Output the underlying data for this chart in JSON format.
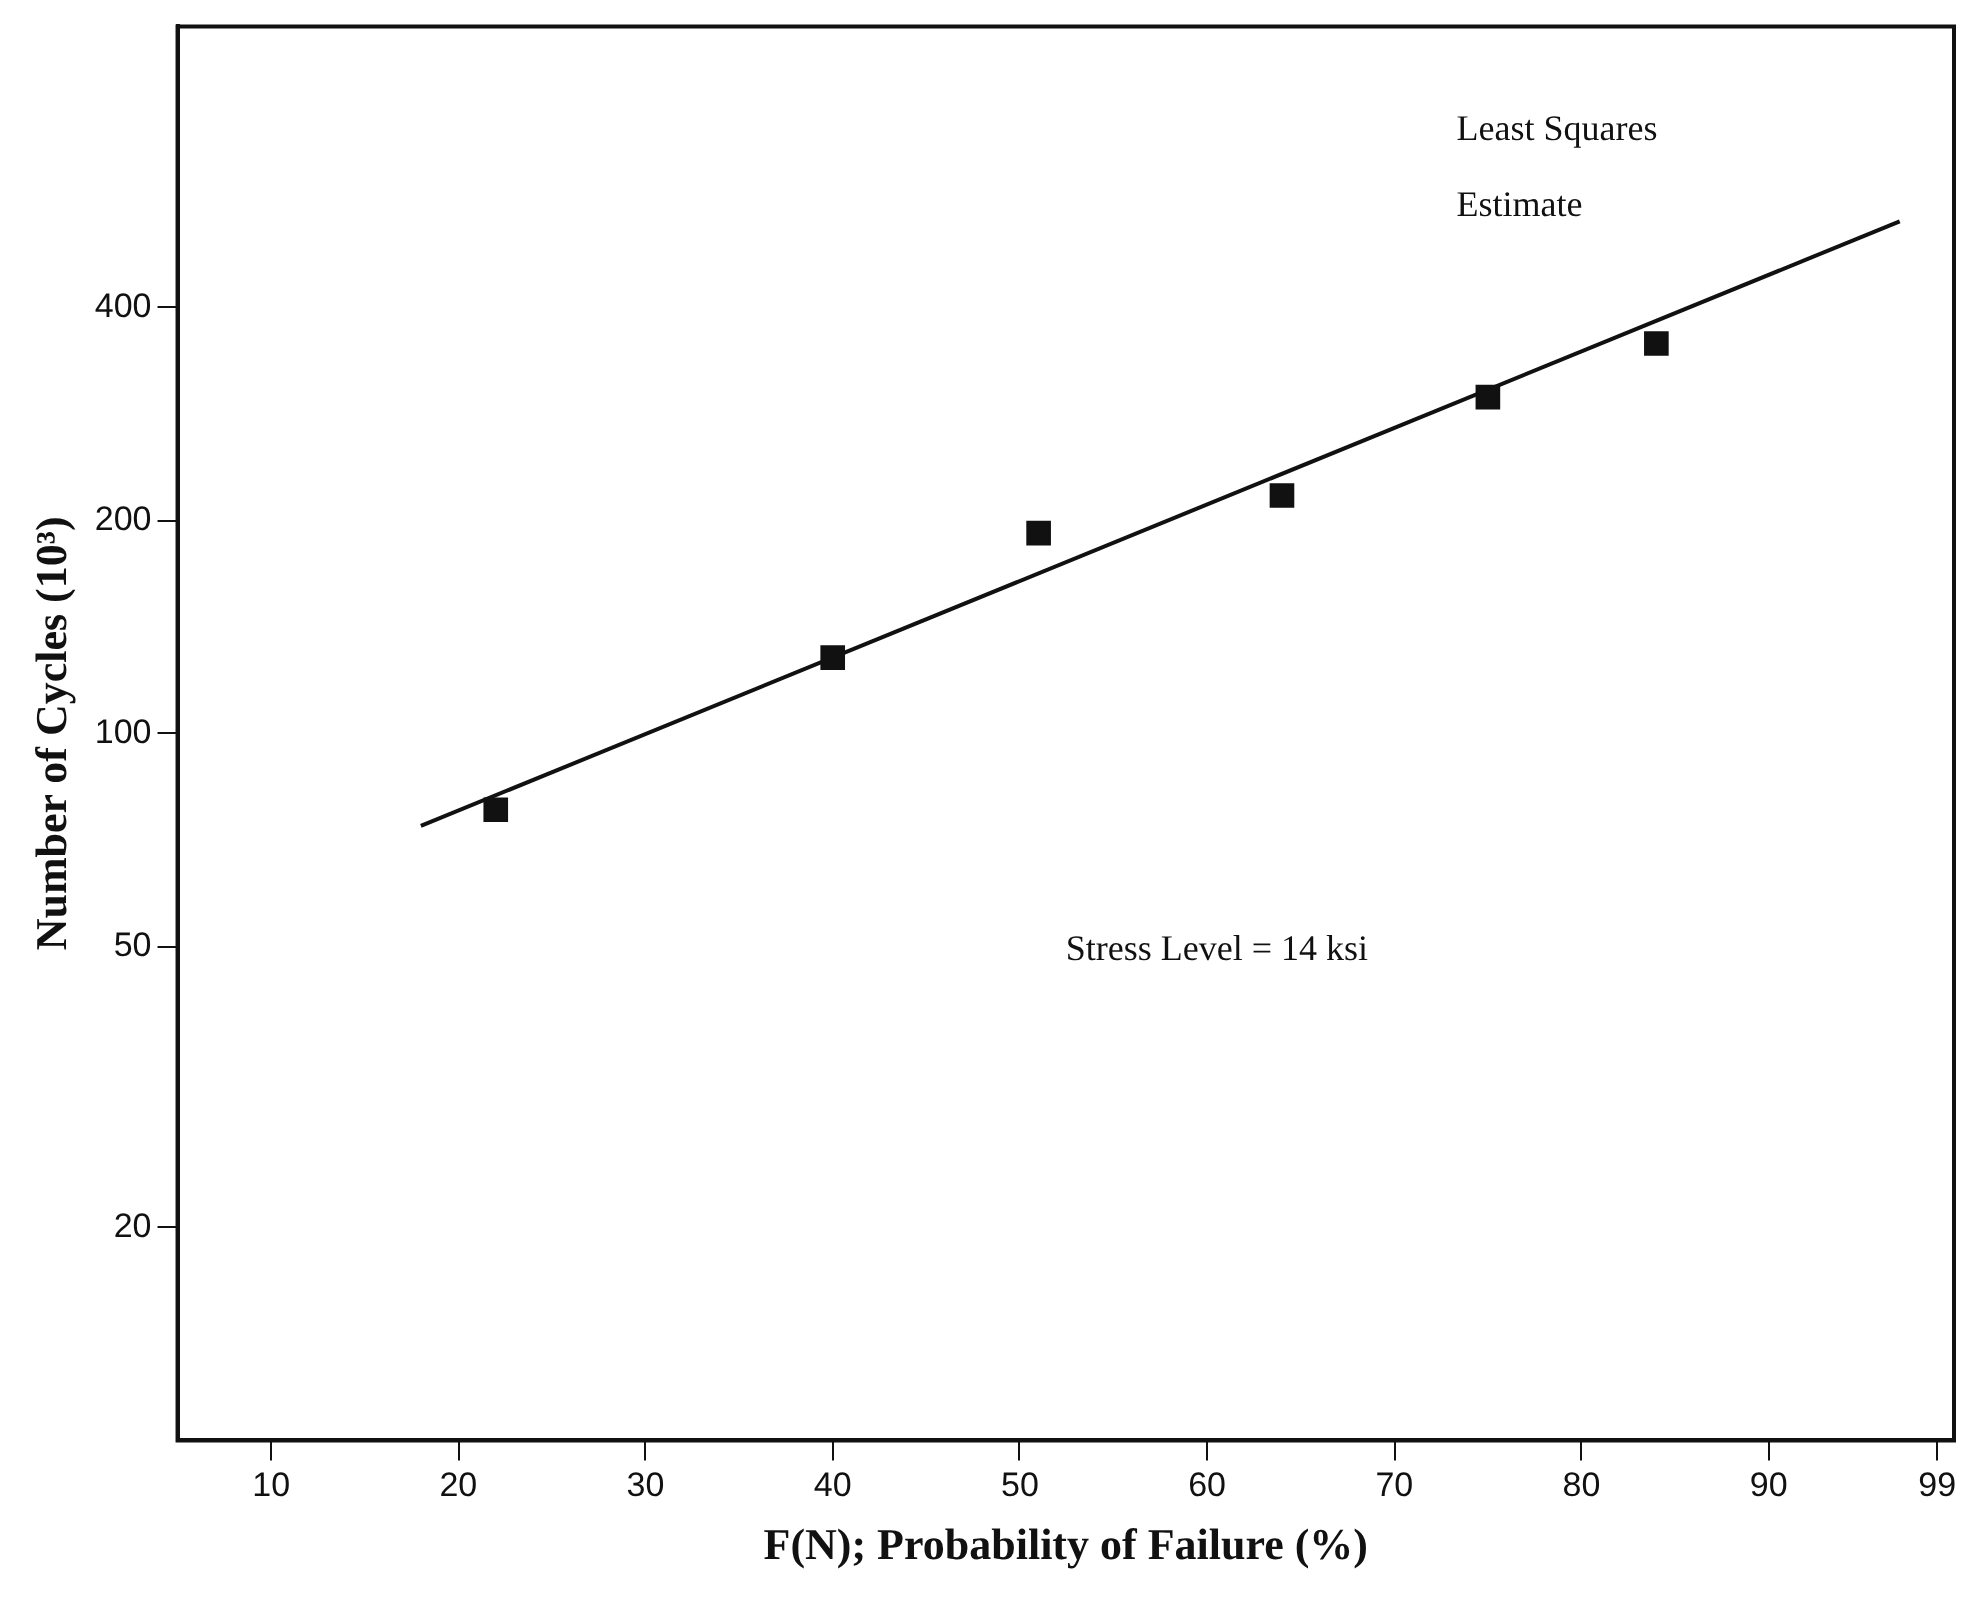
{
  "chart_data": {
    "type": "scatter",
    "xlabel": "F(N); Probability of Failure (%)",
    "ylabel": "Number of Cycles (10³)",
    "log": "y",
    "xlim": [
      5,
      99.9
    ],
    "ylim": [
      10,
      1000
    ],
    "xticks": [
      10,
      20,
      30,
      40,
      50,
      60,
      70,
      80,
      90,
      99
    ],
    "yticks": [
      20,
      50,
      100,
      200,
      400
    ],
    "grid": false,
    "legend": false,
    "marker": "square",
    "series": [
      {
        "type": "scatter",
        "color": "#111111",
        "x": [
          22,
          40,
          51,
          64,
          75,
          84
        ],
        "values": [
          78,
          128,
          192,
          217,
          299,
          356
        ]
      },
      {
        "type": "line",
        "color": "#111111",
        "marker": "none",
        "x": [
          18,
          97
        ],
        "values": [
          74,
          530
        ]
      }
    ],
    "annotations": [
      "Least Squares\nEstimate",
      "Stress Level = 14 ksi"
    ]
  }
}
